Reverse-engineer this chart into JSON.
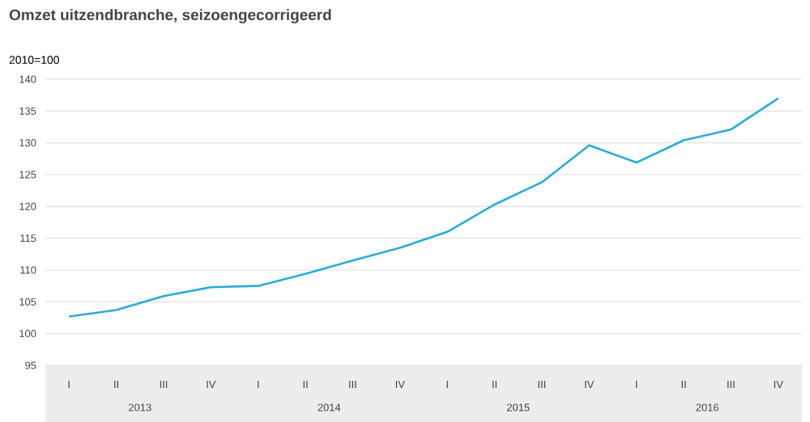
{
  "chart_data": {
    "type": "line",
    "title": "Omzet uitzendbranche, seizoengecorrigeerd",
    "ylabel": "2010=100",
    "categories": [
      "I",
      "II",
      "III",
      "IV",
      "I",
      "II",
      "III",
      "IV",
      "I",
      "II",
      "III",
      "IV",
      "I",
      "II",
      "III",
      "IV"
    ],
    "annotations": [
      "2013",
      "2014",
      "2015",
      "2016"
    ],
    "series": [
      {
        "color": "#29acd9",
        "values": [
          102.7,
          103.7,
          105.9,
          107.3,
          107.5,
          109.4,
          111.5,
          113.5,
          116.0,
          120.3,
          123.8,
          129.6,
          126.9,
          130.4,
          132.1,
          137.0
        ]
      }
    ],
    "ylim": [
      95,
      140
    ],
    "yticks": [
      95,
      100,
      105,
      110,
      115,
      120,
      125,
      130,
      135,
      140
    ],
    "grid": "y",
    "marker": "none",
    "line_style": "solid"
  }
}
